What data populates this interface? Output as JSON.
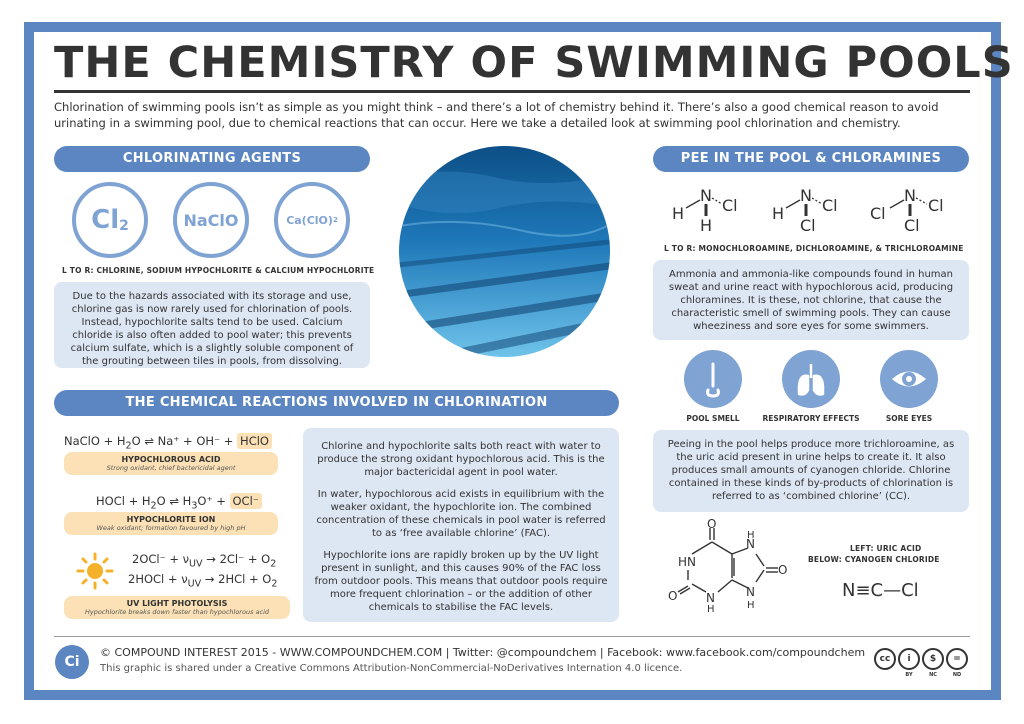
{
  "title": "THE CHEMISTRY OF SWIMMING POOLS",
  "intro": "Chlorination of swimming pools isn’t as simple as you might think – and there’s a lot of chemistry behind it. There’s also a good chemical reason to avoid urinating in a swimming pool, due to chemical reactions that can occur. Here we take a detailed look at swimming pool chlorination and chemistry.",
  "agents": {
    "heading": "CHLORINATING AGENTS",
    "items": [
      {
        "formula": "Cl",
        "sub": "2"
      },
      {
        "formula": "NaClO",
        "sub": ""
      },
      {
        "formula": "Ca(ClO)",
        "sub": "2"
      }
    ],
    "caption": "L TO R: CHLORINE, SODIUM HYPOCHLORITE & CALCIUM HYPOCHLORITE",
    "text": "Due to the hazards associated with its storage and use, chlorine gas is now rarely used for chlorination of pools. Instead, hypochlorite salts tend to be used. Calcium chloride is also often added to pool water; this prevents calcium sulfate, which is a slightly soluble component of the grouting between tiles in pools, from dissolving."
  },
  "reactions": {
    "heading": "THE CHEMICAL REACTIONS INVOLVED IN CHLORINATION",
    "eq1": {
      "left": "NaClO + H",
      "sub": "2",
      "mid": "O",
      "right": "Na⁺ + OH⁻ +",
      "product": "HClO"
    },
    "tag1": {
      "title": "HYPOCHLOROUS ACID",
      "desc": "Strong oxidant, chief bactericidal agent"
    },
    "eq2": {
      "left": "HOCl + H",
      "sub": "2",
      "mid": "O",
      "right": "H",
      "sub2": "3",
      "right2": "O⁺ +",
      "product": "OCl⁻"
    },
    "tag2": {
      "title": "HYPOCHLORITE ION",
      "desc": "Weak oxidant; formation favoured by high pH"
    },
    "eq3": {
      "left": "2OCl⁻ + ν",
      "sub": "UV",
      "right": "2Cl⁻ + O",
      "sub2": "2"
    },
    "eq4": {
      "left": "2HOCl + ν",
      "sub": "UV",
      "right": "2HCl + O",
      "sub2": "2"
    },
    "tag3": {
      "title": "UV LIGHT PHOTOLYSIS",
      "desc": "Hypochlorite breaks down faster than hypochlorous acid"
    },
    "paragraphs": [
      "Chlorine and hypochlorite salts both react with water to produce the strong oxidant hypochlorous acid. This is the major bactericidal agent in pool water.",
      "In water, hypochlorous acid exists in equilibrium with the weaker oxidant, the hypochlorite ion. The combined concentration of these chemicals in pool water is referred to as ‘free available chlorine’ (FAC).",
      "Hypochlorite ions are rapidly broken up by the UV light present in sunlight, and this causes 90% of the FAC loss from outdoor pools. This means that outdoor pools require more frequent chlorination – or the addition of other chemicals to stabilise the FAC levels."
    ]
  },
  "pee": {
    "heading": "PEE IN THE POOL & CHLORAMINES",
    "caption": "L TO R: MONOCHLOROAMINE, DICHLOROAMINE, & TRICHLOROAMINE",
    "text1": "Ammonia and ammonia-like compounds found in human sweat and urine react with hypochlorous acid, producing chloramines. It is these, not chlorine, that cause the characteristic smell of swimming pools. They can cause wheeziness and sore eyes for some swimmers.",
    "effects": [
      {
        "label": "POOL SMELL",
        "icon": "nose-icon"
      },
      {
        "label": "RESPIRATORY EFFECTS",
        "icon": "lungs-icon"
      },
      {
        "label": "SORE EYES",
        "icon": "eye-icon"
      }
    ],
    "text2": "Peeing in the pool helps produce more trichloroamine, as the uric acid present in urine helps to create it. It also produces small amounts of cyanogen chloride. Chlorine contained in these kinds of by-products of chlorination is referred to as ‘combined chlorine’ (CC).",
    "caption2a": "LEFT: URIC ACID",
    "caption2b": "BELOW: CYANOGEN CHLORIDE",
    "cyanogen": "N≡C—Cl"
  },
  "footer": {
    "line1": "© COMPOUND INTEREST 2015 - WWW.COMPOUNDCHEM.COM | Twitter: @compoundchem | Facebook: www.facebook.com/compoundchem",
    "line2": "This graphic is shared under a Creative Commons Attribution-NonCommercial-NoDerivatives Internation 4.0 licence.",
    "logo": "Ci",
    "cc": [
      {
        "glyph": "cc",
        "label": ""
      },
      {
        "glyph": "i",
        "label": "BY"
      },
      {
        "glyph": "$",
        "label": "NC"
      },
      {
        "glyph": "=",
        "label": "ND"
      }
    ]
  },
  "colors": {
    "accent": "#5b86c2",
    "light_blue": "#dde6f3",
    "highlight": "#fbe1b5",
    "icon_blue": "#7fa3d3"
  }
}
